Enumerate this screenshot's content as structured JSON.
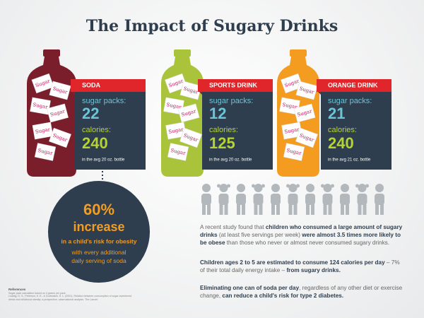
{
  "title": "The Impact of Sugary Drinks",
  "packet_label": "Sugar",
  "drinks": [
    {
      "name": "SODA",
      "bottle_color": "#7b1e2b",
      "sugar_label": "sugar packs:",
      "sugar_packs": 22,
      "calories_label": "calories:",
      "calories": 240,
      "note": "in the avg 20 oz. bottle"
    },
    {
      "name": "SPORTS DRINK",
      "bottle_color": "#a9c43b",
      "sugar_label": "sugar packs:",
      "sugar_packs": 12,
      "calories_label": "calories:",
      "calories": 125,
      "note": "in the avg 20 oz. bottle"
    },
    {
      "name": "ORANGE DRINK",
      "bottle_color": "#f39c1f",
      "sugar_label": "sugar packs:",
      "sugar_packs": 21,
      "calories_label": "calories:",
      "calories": 240,
      "note": "in the avg 21 oz. bottle"
    }
  ],
  "callout": {
    "percent": "60%",
    "headline": "increase",
    "detail": "in a child's risk for obesity",
    "subtext": "with every additional daily serving of soda"
  },
  "paragraphs": [
    [
      {
        "text": "A recent study found that ",
        "bold": false
      },
      {
        "text": "children who consumed a large amount of sugary drinks",
        "bold": true
      },
      {
        "text": " (at least five servings per week) ",
        "bold": false
      },
      {
        "text": "were almost 3.5 times more likely to be obese",
        "bold": true
      },
      {
        "text": " than those who never or almost never consumed sugary drinks.",
        "bold": false
      }
    ],
    [
      {
        "text": "Children ages 2 to 5 are estimated to consume 124 calories per day",
        "bold": true
      },
      {
        "text": " – 7% of their total daily energy intake – ",
        "bold": false
      },
      {
        "text": "from sugary drinks.",
        "bold": true
      }
    ],
    [
      {
        "text": "Eliminating one can of soda per day",
        "bold": true
      },
      {
        "text": ", regardless of any other diet or exercise change, ",
        "bold": false
      },
      {
        "text": "can reduce a child's risk for type 2 diabetes.",
        "bold": true
      }
    ]
  ],
  "references": {
    "heading": "References",
    "lines": [
      "Sugar pack calculation based on 4 grams per pack",
      "Ludwig, D. S., Peterson, K. E., & Gortmaker, S. L. (2001). Relation between consumption of sugar-sweetened",
      "drinks and childhood obesity: a prospective, observational analysis. The Lancet."
    ]
  }
}
